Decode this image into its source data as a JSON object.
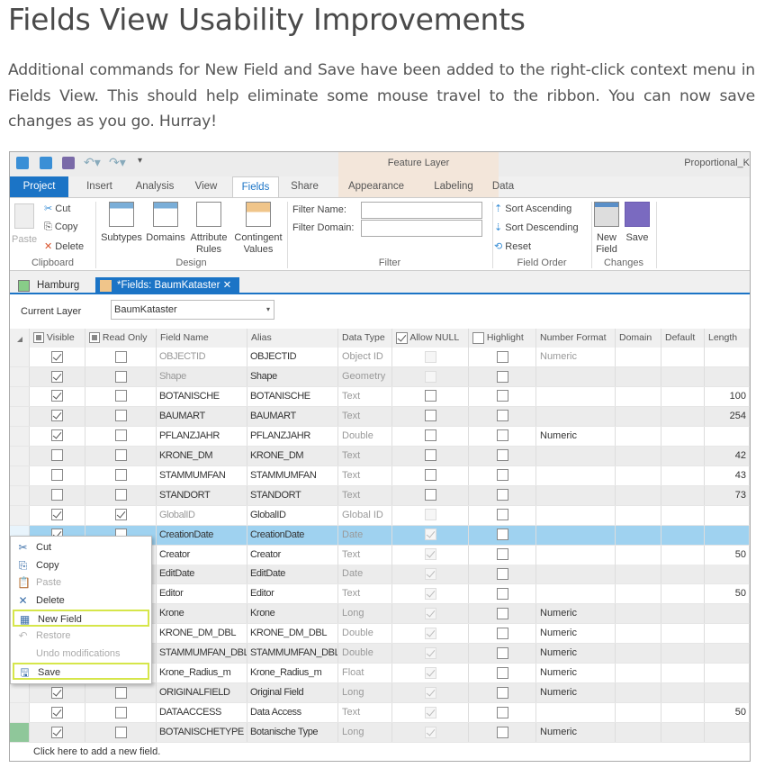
{
  "article": {
    "title": "Fields View Usability Improvements",
    "paragraph": "Additional commands for New Field and Save have been added to the right-click context menu in Fields View. This should help eliminate some mouse travel to the ribbon. You can now save changes as you go. Hurray!"
  },
  "app": {
    "contextual_tab_group": "Feature Layer",
    "project_name": "Proportional_K",
    "tabs": [
      "Project",
      "Insert",
      "Analysis",
      "View",
      "Fields",
      "Share",
      "Appearance",
      "Labeling",
      "Data"
    ],
    "active_tab": "Fields",
    "ribbon": {
      "paste": "Paste",
      "cut": "Cut",
      "copy": "Copy",
      "delete": "Delete",
      "clipboard": "Clipboard",
      "subtypes": "Subtypes",
      "domains": "Domains",
      "attribute_rules": "Attribute Rules",
      "contingent_values": "Contingent Values",
      "design": "Design",
      "filter_name": "Filter Name:",
      "filter_domain": "Filter Domain:",
      "filter_name_value": "",
      "filter_domain_value": "",
      "filter": "Filter",
      "sort_ascending": "Sort Ascending",
      "sort_descending": "Sort Descending",
      "reset": "Reset",
      "field_order": "Field Order",
      "new_field": "New Field",
      "save": "Save",
      "changes": "Changes"
    },
    "doc_tabs": [
      "Hamburg",
      "*Fields:  BaumKataster"
    ],
    "current_layer_label": "Current Layer",
    "current_layer_value": "BaumKataster",
    "columns": [
      "Visible",
      "Read Only",
      "Field Name",
      "Alias",
      "Data Type",
      "Allow NULL",
      "Highlight",
      "Number Format",
      "Domain",
      "Default",
      "Length"
    ],
    "rows": [
      {
        "visible": true,
        "read_only": false,
        "field": "OBJECTID",
        "alias": "OBJECTID",
        "type": "Object ID",
        "allow_null": "disabled",
        "format": "Numeric",
        "length": "",
        "locked": true
      },
      {
        "visible": true,
        "read_only": false,
        "field": "Shape",
        "alias": "Shape",
        "type": "Geometry",
        "allow_null": "disabled",
        "format": "",
        "length": "",
        "locked": true
      },
      {
        "visible": true,
        "read_only": false,
        "field": "BOTANISCHE",
        "alias": "BOTANISCHE",
        "type": "Text",
        "allow_null": "unchecked",
        "format": "",
        "length": "100"
      },
      {
        "visible": true,
        "read_only": false,
        "field": "BAUMART",
        "alias": "BAUMART",
        "type": "Text",
        "allow_null": "unchecked",
        "format": "",
        "length": "254"
      },
      {
        "visible": true,
        "read_only": false,
        "field": "PFLANZJAHR",
        "alias": "PFLANZJAHR",
        "type": "Double",
        "allow_null": "unchecked",
        "format": "Numeric",
        "length": ""
      },
      {
        "visible": false,
        "read_only": false,
        "field": "KRONE_DM",
        "alias": "KRONE_DM",
        "type": "Text",
        "allow_null": "unchecked",
        "format": "",
        "length": "42"
      },
      {
        "visible": false,
        "read_only": false,
        "field": "STAMMUMFAN",
        "alias": "STAMMUMFAN",
        "type": "Text",
        "allow_null": "unchecked",
        "format": "",
        "length": "43"
      },
      {
        "visible": false,
        "read_only": false,
        "field": "STANDORT",
        "alias": "STANDORT",
        "type": "Text",
        "allow_null": "unchecked",
        "format": "",
        "length": "73"
      },
      {
        "visible": true,
        "read_only": true,
        "field": "GlobalID",
        "alias": "GlobalID",
        "type": "Global ID",
        "allow_null": "disabled",
        "format": "",
        "length": "",
        "locked": true
      },
      {
        "visible": true,
        "read_only": false,
        "field": "CreationDate",
        "alias": "CreationDate",
        "type": "Date",
        "allow_null": "checked-disabled",
        "format": "",
        "length": "",
        "selected": true
      },
      {
        "visible": true,
        "read_only": false,
        "field": "Creator",
        "alias": "Creator",
        "type": "Text",
        "allow_null": "checked-disabled",
        "format": "",
        "length": "50"
      },
      {
        "visible": true,
        "read_only": false,
        "field": "EditDate",
        "alias": "EditDate",
        "type": "Date",
        "allow_null": "checked-disabled",
        "format": "",
        "length": ""
      },
      {
        "visible": true,
        "read_only": false,
        "field": "Editor",
        "alias": "Editor",
        "type": "Text",
        "allow_null": "checked-disabled",
        "format": "",
        "length": "50"
      },
      {
        "visible": true,
        "read_only": false,
        "field": "Krone",
        "alias": "Krone",
        "type": "Long",
        "allow_null": "checked-disabled",
        "format": "Numeric",
        "length": ""
      },
      {
        "visible": true,
        "read_only": false,
        "field": "KRONE_DM_DBL",
        "alias": "KRONE_DM_DBL",
        "type": "Double",
        "allow_null": "checked-disabled",
        "format": "Numeric",
        "length": ""
      },
      {
        "visible": true,
        "read_only": false,
        "field": "STAMMUMFAN_DBL",
        "alias": "STAMMUMFAN_DBL",
        "type": "Double",
        "allow_null": "checked-disabled",
        "format": "Numeric",
        "length": ""
      },
      {
        "visible": true,
        "read_only": false,
        "field": "Krone_Radius_m",
        "alias": "Krone_Radius_m",
        "type": "Float",
        "allow_null": "checked-disabled",
        "format": "Numeric",
        "length": ""
      },
      {
        "visible": true,
        "read_only": false,
        "field": "ORIGINALFIELD",
        "alias": "Original Field",
        "type": "Long",
        "allow_null": "checked-disabled",
        "format": "Numeric",
        "length": ""
      },
      {
        "visible": true,
        "read_only": false,
        "field": "DATAACCESS",
        "alias": "Data Access",
        "type": "Text",
        "allow_null": "checked-disabled",
        "format": "",
        "length": "50"
      },
      {
        "visible": true,
        "read_only": false,
        "field": "BOTANISCHETYPE",
        "alias": "Botanische Type",
        "type": "Long",
        "allow_null": "checked-disabled",
        "format": "Numeric",
        "length": "",
        "new": true
      }
    ],
    "add_row": "Click here to add a new field.",
    "context_menu": [
      {
        "label": "Cut",
        "icon": "scissors-icon",
        "glyph": "✂",
        "enabled": true
      },
      {
        "label": "Copy",
        "icon": "copy-icon",
        "glyph": "⎘",
        "enabled": true
      },
      {
        "label": "Paste",
        "icon": "paste-icon",
        "glyph": "📋",
        "enabled": false
      },
      {
        "label": "Delete",
        "icon": "delete-icon",
        "glyph": "✕",
        "enabled": true
      },
      {
        "label": "New Field",
        "icon": "new-field-icon",
        "glyph": "▦",
        "enabled": true,
        "highlighted": true
      },
      {
        "label": "Restore",
        "icon": "restore-icon",
        "glyph": "↶",
        "enabled": false
      },
      {
        "label": "Undo modifications",
        "icon": "",
        "glyph": "",
        "enabled": false
      },
      {
        "label": "Save",
        "icon": "save-icon",
        "glyph": "🖫",
        "enabled": true,
        "highlighted": true
      }
    ],
    "colors": {
      "accent": "#1b74c6",
      "selection": "#9fd2f0",
      "highlight_box": "#d6e64a",
      "contextual_tab": "#f3e6da"
    }
  }
}
